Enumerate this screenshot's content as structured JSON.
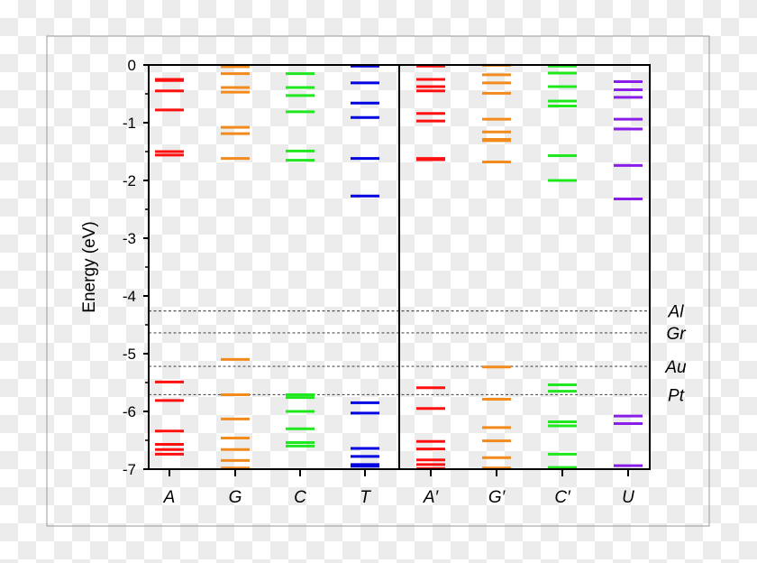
{
  "chart_data": {
    "type": "energy-level diagram",
    "ylabel": "Energy (eV)",
    "ylim": [
      -7,
      0
    ],
    "yticks": [
      "0",
      "-1",
      "-2",
      "-3",
      "-4",
      "-5",
      "-6",
      "-7"
    ],
    "grid": false,
    "categories": [
      "A",
      "G",
      "C",
      "T",
      "A′",
      "G′",
      "C′",
      "U"
    ],
    "series": [
      {
        "category": "A",
        "color": "#ff1010",
        "levels": [
          -0.25,
          -0.27,
          -0.45,
          -0.78,
          -1.5,
          -1.56,
          -5.49,
          -5.81,
          -6.34,
          -6.57,
          -6.66,
          -6.74
        ]
      },
      {
        "category": "G",
        "color": "#f28a1e",
        "levels": [
          -0.03,
          -0.15,
          -0.39,
          -0.47,
          -1.08,
          -1.19,
          -1.62,
          -5.1,
          -5.71,
          -6.13,
          -6.46,
          -6.66,
          -6.85,
          -6.98
        ]
      },
      {
        "category": "C",
        "color": "#1fe81f",
        "levels": [
          -0.15,
          -0.39,
          -0.53,
          -0.81,
          -1.49,
          -1.65,
          -5.71,
          -5.76,
          -6.0,
          -6.3,
          -6.54,
          -6.6
        ]
      },
      {
        "category": "T",
        "color": "#0000e0",
        "levels": [
          -0.02,
          -0.31,
          -0.66,
          -0.91,
          -1.62,
          -2.27,
          -5.85,
          -6.03,
          -6.64,
          -6.78,
          -6.92,
          -6.95
        ]
      },
      {
        "category": "A′",
        "color": "#ff1010",
        "levels": [
          -0.02,
          -0.25,
          -0.375,
          -0.45,
          -0.84,
          -0.97,
          -1.62,
          -1.64,
          -5.59,
          -5.95,
          -6.52,
          -6.65,
          -6.84,
          -6.92,
          -6.99
        ]
      },
      {
        "category": "G′",
        "color": "#f28a1e",
        "levels": [
          -0.005,
          -0.17,
          -0.31,
          -0.49,
          -0.94,
          -1.16,
          -1.29,
          -1.31,
          -1.68,
          -5.23,
          -5.79,
          -6.28,
          -6.51,
          -6.8,
          -6.98
        ]
      },
      {
        "category": "C′",
        "color": "#1fe81f",
        "levels": [
          -0.02,
          -0.14,
          -0.375,
          -0.625,
          -0.71,
          -1.57,
          -2.0,
          -5.54,
          -5.65,
          -6.18,
          -6.25,
          -6.74,
          -6.97,
          -6.99
        ]
      },
      {
        "category": "U",
        "color": "#8a1ee8",
        "levels": [
          -0.29,
          -0.43,
          -0.56,
          -0.94,
          -1.11,
          -1.74,
          -2.32,
          -6.08,
          -6.21,
          -6.94
        ]
      }
    ],
    "reference_lines": [
      {
        "label": "Al",
        "value": -4.26
      },
      {
        "label": "Gr",
        "value": -4.64
      },
      {
        "label": "Au",
        "value": -5.22
      },
      {
        "label": "Pt",
        "value": -5.71
      }
    ]
  }
}
